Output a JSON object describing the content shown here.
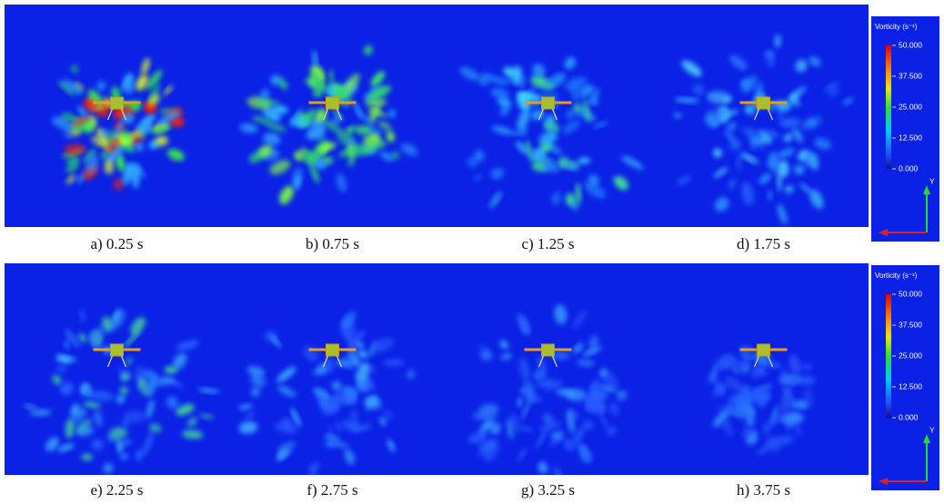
{
  "figure": {
    "rows": [
      {
        "panels": [
          {
            "caption": "a) 0.25 s"
          },
          {
            "caption": "b) 0.75 s"
          },
          {
            "caption": "c) 1.25 s"
          },
          {
            "caption": "d) 1.75 s"
          }
        ]
      },
      {
        "panels": [
          {
            "caption": "e) 2.25 s"
          },
          {
            "caption": "f) 2.75 s"
          },
          {
            "caption": "g) 3.25 s"
          },
          {
            "caption": "h) 3.75 s"
          }
        ]
      }
    ],
    "colorbar": {
      "title": "Vorticity (s⁻¹)",
      "ticks": [
        {
          "value": 50,
          "label": "50.000"
        },
        {
          "value": 37.5,
          "label": "37.500"
        },
        {
          "value": 25,
          "label": "25.000"
        },
        {
          "value": 12.5,
          "label": "12.500"
        },
        {
          "value": 0,
          "label": "0.000"
        }
      ],
      "axis_label": "Y"
    }
  }
}
